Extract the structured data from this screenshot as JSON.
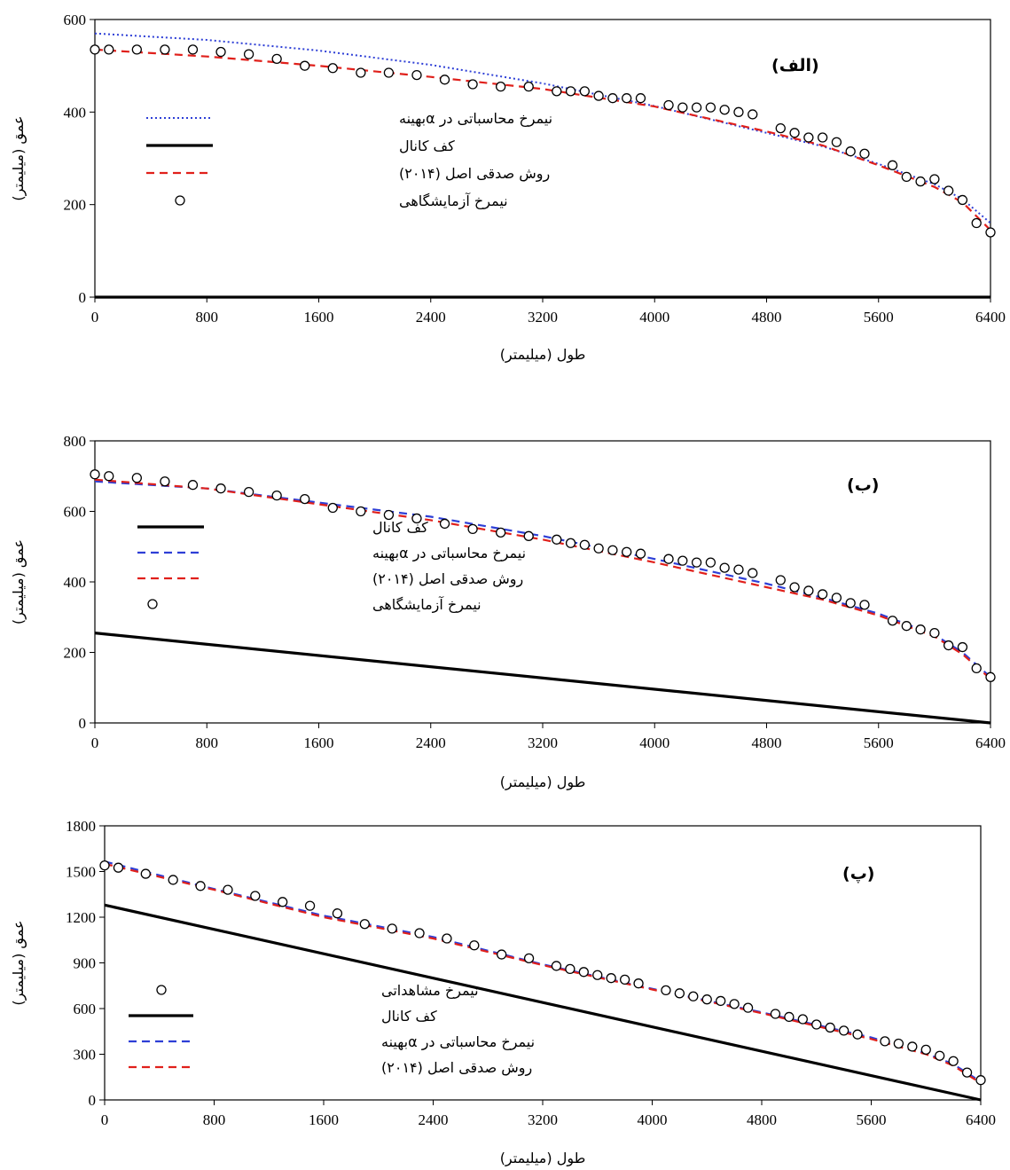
{
  "charts": [
    {
      "type": "line",
      "panel_label": "(الف)",
      "xlabel": "طول (میلیمتر)",
      "ylabel": "عمق (میلیمتر)",
      "xlim": [
        0,
        6400
      ],
      "ylim": [
        0,
        600
      ],
      "xticks": [
        0,
        800,
        1600,
        2400,
        3200,
        4000,
        4800,
        5600,
        6400
      ],
      "yticks": [
        0,
        200,
        400,
        600
      ],
      "legend": [
        {
          "key": "calc",
          "label": "نیمرخ محاسباتی در αبهینه"
        },
        {
          "key": "bed",
          "label": "کف کانال"
        },
        {
          "key": "sedghi",
          "label": "روش صدقی اصل (۲۰۱۴)"
        },
        {
          "key": "obs",
          "label": "نیمرخ آزمایشگاهی"
        }
      ],
      "series": {
        "calc": {
          "color": "#2e3fd6",
          "style": "dotted",
          "x": [
            0,
            800,
            1600,
            2400,
            3200,
            4000,
            4800,
            5200,
            5600,
            6000,
            6200,
            6400
          ],
          "y": [
            570,
            556,
            533,
            502,
            462,
            413,
            355,
            326,
            288,
            244,
            212,
            160
          ]
        },
        "bed": {
          "color": "#000000",
          "style": "solid",
          "x": [
            0,
            6400
          ],
          "y": [
            0,
            0
          ]
        },
        "sedghi": {
          "color": "#e0201b",
          "style": "dashed",
          "x": [
            0,
            800,
            1600,
            2400,
            3200,
            4000,
            4800,
            5200,
            5600,
            6000,
            6200,
            6400
          ],
          "y": [
            535,
            520,
            500,
            476,
            450,
            412,
            358,
            328,
            285,
            238,
            205,
            145
          ]
        },
        "obs": {
          "x": [
            0,
            100,
            300,
            500,
            700,
            900,
            1100,
            1300,
            1500,
            1700,
            1900,
            2100,
            2300,
            2500,
            2700,
            2900,
            3100,
            3300,
            3400,
            3500,
            3600,
            3700,
            3800,
            3900,
            4100,
            4200,
            4300,
            4400,
            4500,
            4600,
            4700,
            4900,
            5000,
            5100,
            5200,
            5300,
            5400,
            5500,
            5700,
            5800,
            5900,
            6000,
            6100,
            6200,
            6300,
            6400
          ],
          "y": [
            535,
            535,
            535,
            535,
            535,
            530,
            525,
            515,
            500,
            495,
            485,
            485,
            480,
            470,
            460,
            455,
            455,
            445,
            445,
            445,
            435,
            430,
            430,
            430,
            415,
            410,
            410,
            410,
            405,
            400,
            395,
            365,
            355,
            345,
            345,
            335,
            315,
            310,
            285,
            260,
            250,
            255,
            230,
            210,
            160,
            140
          ]
        }
      }
    },
    {
      "type": "line",
      "panel_label": "(ب)",
      "xlabel": "طول (میلیمتر)",
      "ylabel": "عمق (میلیمتر)",
      "xlim": [
        0,
        6400
      ],
      "ylim": [
        0,
        800
      ],
      "xticks": [
        0,
        800,
        1600,
        2400,
        3200,
        4000,
        4800,
        5600,
        6400
      ],
      "yticks": [
        0,
        200,
        400,
        600,
        800
      ],
      "legend": [
        {
          "key": "bed",
          "label": "کف کانال"
        },
        {
          "key": "calc",
          "label": "نیمرخ محاسباتی در αبهینه"
        },
        {
          "key": "sedghi",
          "label": "روش صدقی اصل (۲۰۱۴)"
        },
        {
          "key": "obs",
          "label": "نیمرخ آزمایشگاهی"
        }
      ],
      "series": {
        "calc": {
          "color": "#2e3fd6",
          "style": "dashed",
          "x": [
            0,
            800,
            1600,
            2400,
            3200,
            4000,
            4800,
            5200,
            5600,
            6000,
            6200,
            6400
          ],
          "y": [
            685,
            665,
            625,
            585,
            530,
            465,
            395,
            355,
            310,
            250,
            200,
            130
          ]
        },
        "bed": {
          "color": "#000000",
          "style": "solid",
          "x": [
            0,
            6400
          ],
          "y": [
            255,
            0
          ]
        },
        "sedghi": {
          "color": "#e0201b",
          "style": "dashed",
          "x": [
            0,
            800,
            1600,
            2400,
            3200,
            4000,
            4800,
            5200,
            5600,
            6000,
            6200,
            6400
          ],
          "y": [
            690,
            665,
            620,
            575,
            520,
            455,
            385,
            350,
            305,
            245,
            195,
            125
          ]
        },
        "obs": {
          "x": [
            0,
            100,
            300,
            500,
            700,
            900,
            1100,
            1300,
            1500,
            1700,
            1900,
            2100,
            2300,
            2500,
            2700,
            2900,
            3100,
            3300,
            3400,
            3500,
            3600,
            3700,
            3800,
            3900,
            4100,
            4200,
            4300,
            4400,
            4500,
            4600,
            4700,
            4900,
            5000,
            5100,
            5200,
            5300,
            5400,
            5500,
            5700,
            5800,
            5900,
            6000,
            6100,
            6200,
            6300,
            6400
          ],
          "y": [
            705,
            700,
            695,
            685,
            675,
            665,
            655,
            645,
            635,
            610,
            600,
            590,
            580,
            565,
            550,
            540,
            530,
            520,
            510,
            505,
            495,
            490,
            485,
            480,
            465,
            460,
            455,
            455,
            440,
            435,
            425,
            405,
            385,
            375,
            365,
            355,
            340,
            335,
            290,
            275,
            265,
            255,
            220,
            215,
            155,
            130
          ]
        }
      }
    },
    {
      "type": "line",
      "panel_label": "(پ)",
      "xlabel": "طول (میلیمتر)",
      "ylabel": "عمق (میلیمتر)",
      "xlim": [
        0,
        6400
      ],
      "ylim": [
        0,
        1800
      ],
      "xticks": [
        0,
        800,
        1600,
        2400,
        3200,
        4000,
        4800,
        5600,
        6400
      ],
      "yticks": [
        0,
        300,
        600,
        900,
        1200,
        1500,
        1800
      ],
      "legend": [
        {
          "key": "obs",
          "label": "نیمرخ مشاهداتی"
        },
        {
          "key": "bed",
          "label": "کف کانال"
        },
        {
          "key": "calc",
          "label": "نیمرخ محاسباتی در αبهینه"
        },
        {
          "key": "sedghi",
          "label": "روش صدقی اصل (۲۰۱۴)"
        }
      ],
      "series": {
        "calc": {
          "color": "#2e3fd6",
          "style": "dashed",
          "x": [
            0,
            800,
            1600,
            2400,
            3200,
            4000,
            4800,
            5600,
            6000,
            6200,
            6400
          ],
          "y": [
            1565,
            1385,
            1210,
            1070,
            890,
            730,
            575,
            410,
            305,
            235,
            120
          ]
        },
        "bed": {
          "color": "#000000",
          "style": "solid",
          "x": [
            0,
            6400
          ],
          "y": [
            1280,
            0
          ]
        },
        "sedghi": {
          "color": "#e0201b",
          "style": "dashed",
          "x": [
            0,
            800,
            1600,
            2400,
            3200,
            4000,
            4800,
            5600,
            6000,
            6200,
            6400
          ],
          "y": [
            1550,
            1380,
            1200,
            1060,
            885,
            725,
            570,
            400,
            300,
            225,
            110
          ]
        },
        "obs": {
          "x": [
            0,
            100,
            300,
            500,
            700,
            900,
            1100,
            1300,
            1500,
            1700,
            1900,
            2100,
            2300,
            2500,
            2700,
            2900,
            3100,
            3300,
            3400,
            3500,
            3600,
            3700,
            3800,
            3900,
            4100,
            4200,
            4300,
            4400,
            4500,
            4600,
            4700,
            4900,
            5000,
            5100,
            5200,
            5300,
            5400,
            5500,
            5700,
            5800,
            5900,
            6000,
            6100,
            6200,
            6300,
            6400
          ],
          "y": [
            1540,
            1525,
            1485,
            1445,
            1405,
            1380,
            1340,
            1300,
            1275,
            1225,
            1155,
            1125,
            1095,
            1060,
            1015,
            955,
            930,
            880,
            860,
            840,
            820,
            800,
            790,
            765,
            720,
            700,
            680,
            660,
            650,
            630,
            605,
            565,
            545,
            530,
            495,
            475,
            455,
            430,
            385,
            370,
            350,
            330,
            290,
            255,
            180,
            130
          ]
        }
      }
    }
  ]
}
